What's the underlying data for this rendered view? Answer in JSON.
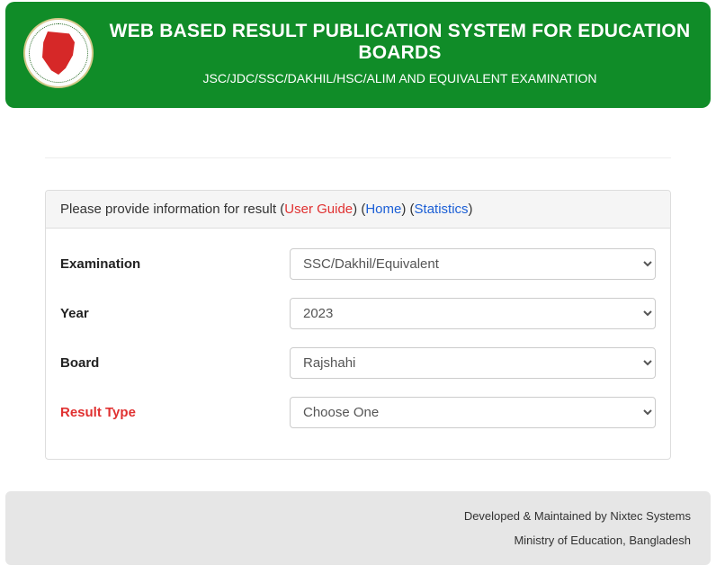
{
  "header": {
    "title": "WEB BASED RESULT PUBLICATION SYSTEM FOR EDUCATION BOARDS",
    "subtitle": "JSC/JDC/SSC/DAKHIL/HSC/ALIM AND EQUIVALENT EXAMINATION"
  },
  "panel": {
    "intro_text": "Please provide information for result (",
    "link_user_guide": "User Guide",
    "sep1": ") (",
    "link_home": "Home",
    "sep2": ") (",
    "link_statistics": "Statistics",
    "close": ")"
  },
  "form": {
    "examination": {
      "label": "Examination",
      "value": "SSC/Dakhil/Equivalent"
    },
    "year": {
      "label": "Year",
      "value": "2023"
    },
    "board": {
      "label": "Board",
      "value": "Rajshahi"
    },
    "result_type": {
      "label": "Result Type",
      "value": "Choose One"
    }
  },
  "footer": {
    "line1": "Developed & Maintained by Nixtec Systems",
    "line2": "Ministry of Education, Bangladesh"
  }
}
